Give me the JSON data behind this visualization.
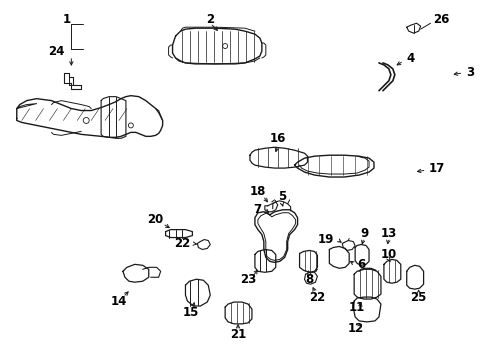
{
  "bg": "#ffffff",
  "lc": "#1a1a1a",
  "tc": "#000000",
  "fs": 8.5,
  "fs_small": 7.5,
  "figw": 4.89,
  "figh": 3.6,
  "dpi": 100
}
